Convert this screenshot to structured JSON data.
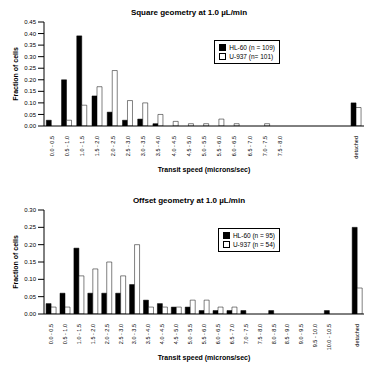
{
  "chart_data": [
    {
      "type": "bar",
      "title": "Square geometry at 1.0 µL/min",
      "x_label": "Transit speed (microns/sec)",
      "y_label": "Fraction of cells",
      "categories": [
        "0.0 - 0.5",
        "0.5 - 1.0",
        "1.0 - 1.5",
        "1.5 - 2.0",
        "2.0 - 2.5",
        "2.5 - 3.0",
        "3.0 - 3.5",
        "3.5 - 4.0",
        "4.0 - 4.5",
        "4.5 - 5.0",
        "5.0 - 5.5",
        "5.5 - 6.0",
        "6.0 - 6.5",
        "6.5 - 7.0",
        "7.0 - 7.5",
        "7.5 - 8.0",
        null,
        null,
        null,
        null,
        "detached"
      ],
      "series": [
        {
          "name": "HL-60 (n = 109)",
          "color": "#000000",
          "values": [
            0.025,
            0.2,
            0.39,
            0.13,
            0.06,
            0.025,
            0.03,
            0.01,
            0,
            0,
            0,
            0,
            0,
            0,
            0,
            0,
            0,
            0,
            0,
            0,
            0.1
          ]
        },
        {
          "name": "U-937 (n= 101)",
          "color": "#ffffff",
          "values": [
            0,
            0.025,
            0.09,
            0.17,
            0.24,
            0.11,
            0.1,
            0.05,
            0.02,
            0.01,
            0.01,
            0.03,
            0.01,
            0,
            0.01,
            0,
            0,
            0,
            0,
            0,
            0.08
          ]
        }
      ],
      "ylim": [
        0,
        0.45
      ],
      "yticks": [
        {
          "value": 0,
          "label": "0.00"
        },
        {
          "value": 0.05,
          "label": "0.05"
        },
        {
          "value": 0.1,
          "label": "0.10"
        },
        {
          "value": 0.15,
          "label": "0.15"
        },
        {
          "value": 0.2,
          "label": "0.20"
        },
        {
          "value": 0.25,
          "label": "0.25"
        },
        {
          "value": 0.3,
          "label": "0.30"
        },
        {
          "value": 0.35,
          "label": "0.35"
        },
        {
          "value": 0.4,
          "label": "0.40"
        },
        {
          "value": 0.45,
          "label": "0.45"
        }
      ],
      "grid": false,
      "legend": "top-right"
    },
    {
      "type": "bar",
      "title": "Offset geometry at 1.0 µL/min",
      "x_label": "Transit speed (microns/sec)",
      "y_label": "Fraction of cells",
      "categories": [
        "0.0 - 0.5",
        "0.5 - 1.0",
        "1.0 - 1.5",
        "1.5 - 2.0",
        "2.0 - 2.5",
        "2.5 - 3.0",
        "3.0 - 3.5",
        "3.5 - 4.0",
        "4.0 - 4.5",
        "4.5 - 5.0",
        "5.0 - 5.5",
        "5.5 - 6.0",
        "6.0 - 6.5",
        "6.5 - 7.0",
        "7.0 - 7.5",
        "7.5 - 8.0",
        "8.0 - 8.5",
        "8.5 - 9.0",
        "9.0 - 9.5",
        "9.5 - 10.0",
        "10.0 - 10.5",
        null,
        "detached"
      ],
      "series": [
        {
          "name": "HL-60 (n = 95)",
          "color": "#000000",
          "values": [
            0.03,
            0.06,
            0.19,
            0.06,
            0.06,
            0.06,
            0.085,
            0.04,
            0.03,
            0.02,
            0.02,
            0.01,
            0.01,
            0.01,
            0.01,
            0,
            0.01,
            0,
            0,
            0,
            0.01,
            0,
            0.25
          ]
        },
        {
          "name": "U-937 (n = 54)",
          "color": "#ffffff",
          "values": [
            0.02,
            0.02,
            0.11,
            0.13,
            0.15,
            0.11,
            0.2,
            0.02,
            0.02,
            0.02,
            0.04,
            0.04,
            0.02,
            0.02,
            0,
            0,
            0,
            0,
            0,
            0,
            0,
            0,
            0.075
          ]
        }
      ],
      "ylim": [
        0,
        0.3
      ],
      "yticks": [
        {
          "value": 0,
          "label": "0.00"
        },
        {
          "value": 0.05,
          "label": "0.05"
        },
        {
          "value": 0.1,
          "label": "0.10"
        },
        {
          "value": 0.15,
          "label": "0.15"
        },
        {
          "value": 0.2,
          "label": "0.20"
        },
        {
          "value": 0.25,
          "label": "0.25"
        },
        {
          "value": 0.3,
          "label": "0.30"
        }
      ],
      "grid": false,
      "legend": "top-right"
    }
  ]
}
